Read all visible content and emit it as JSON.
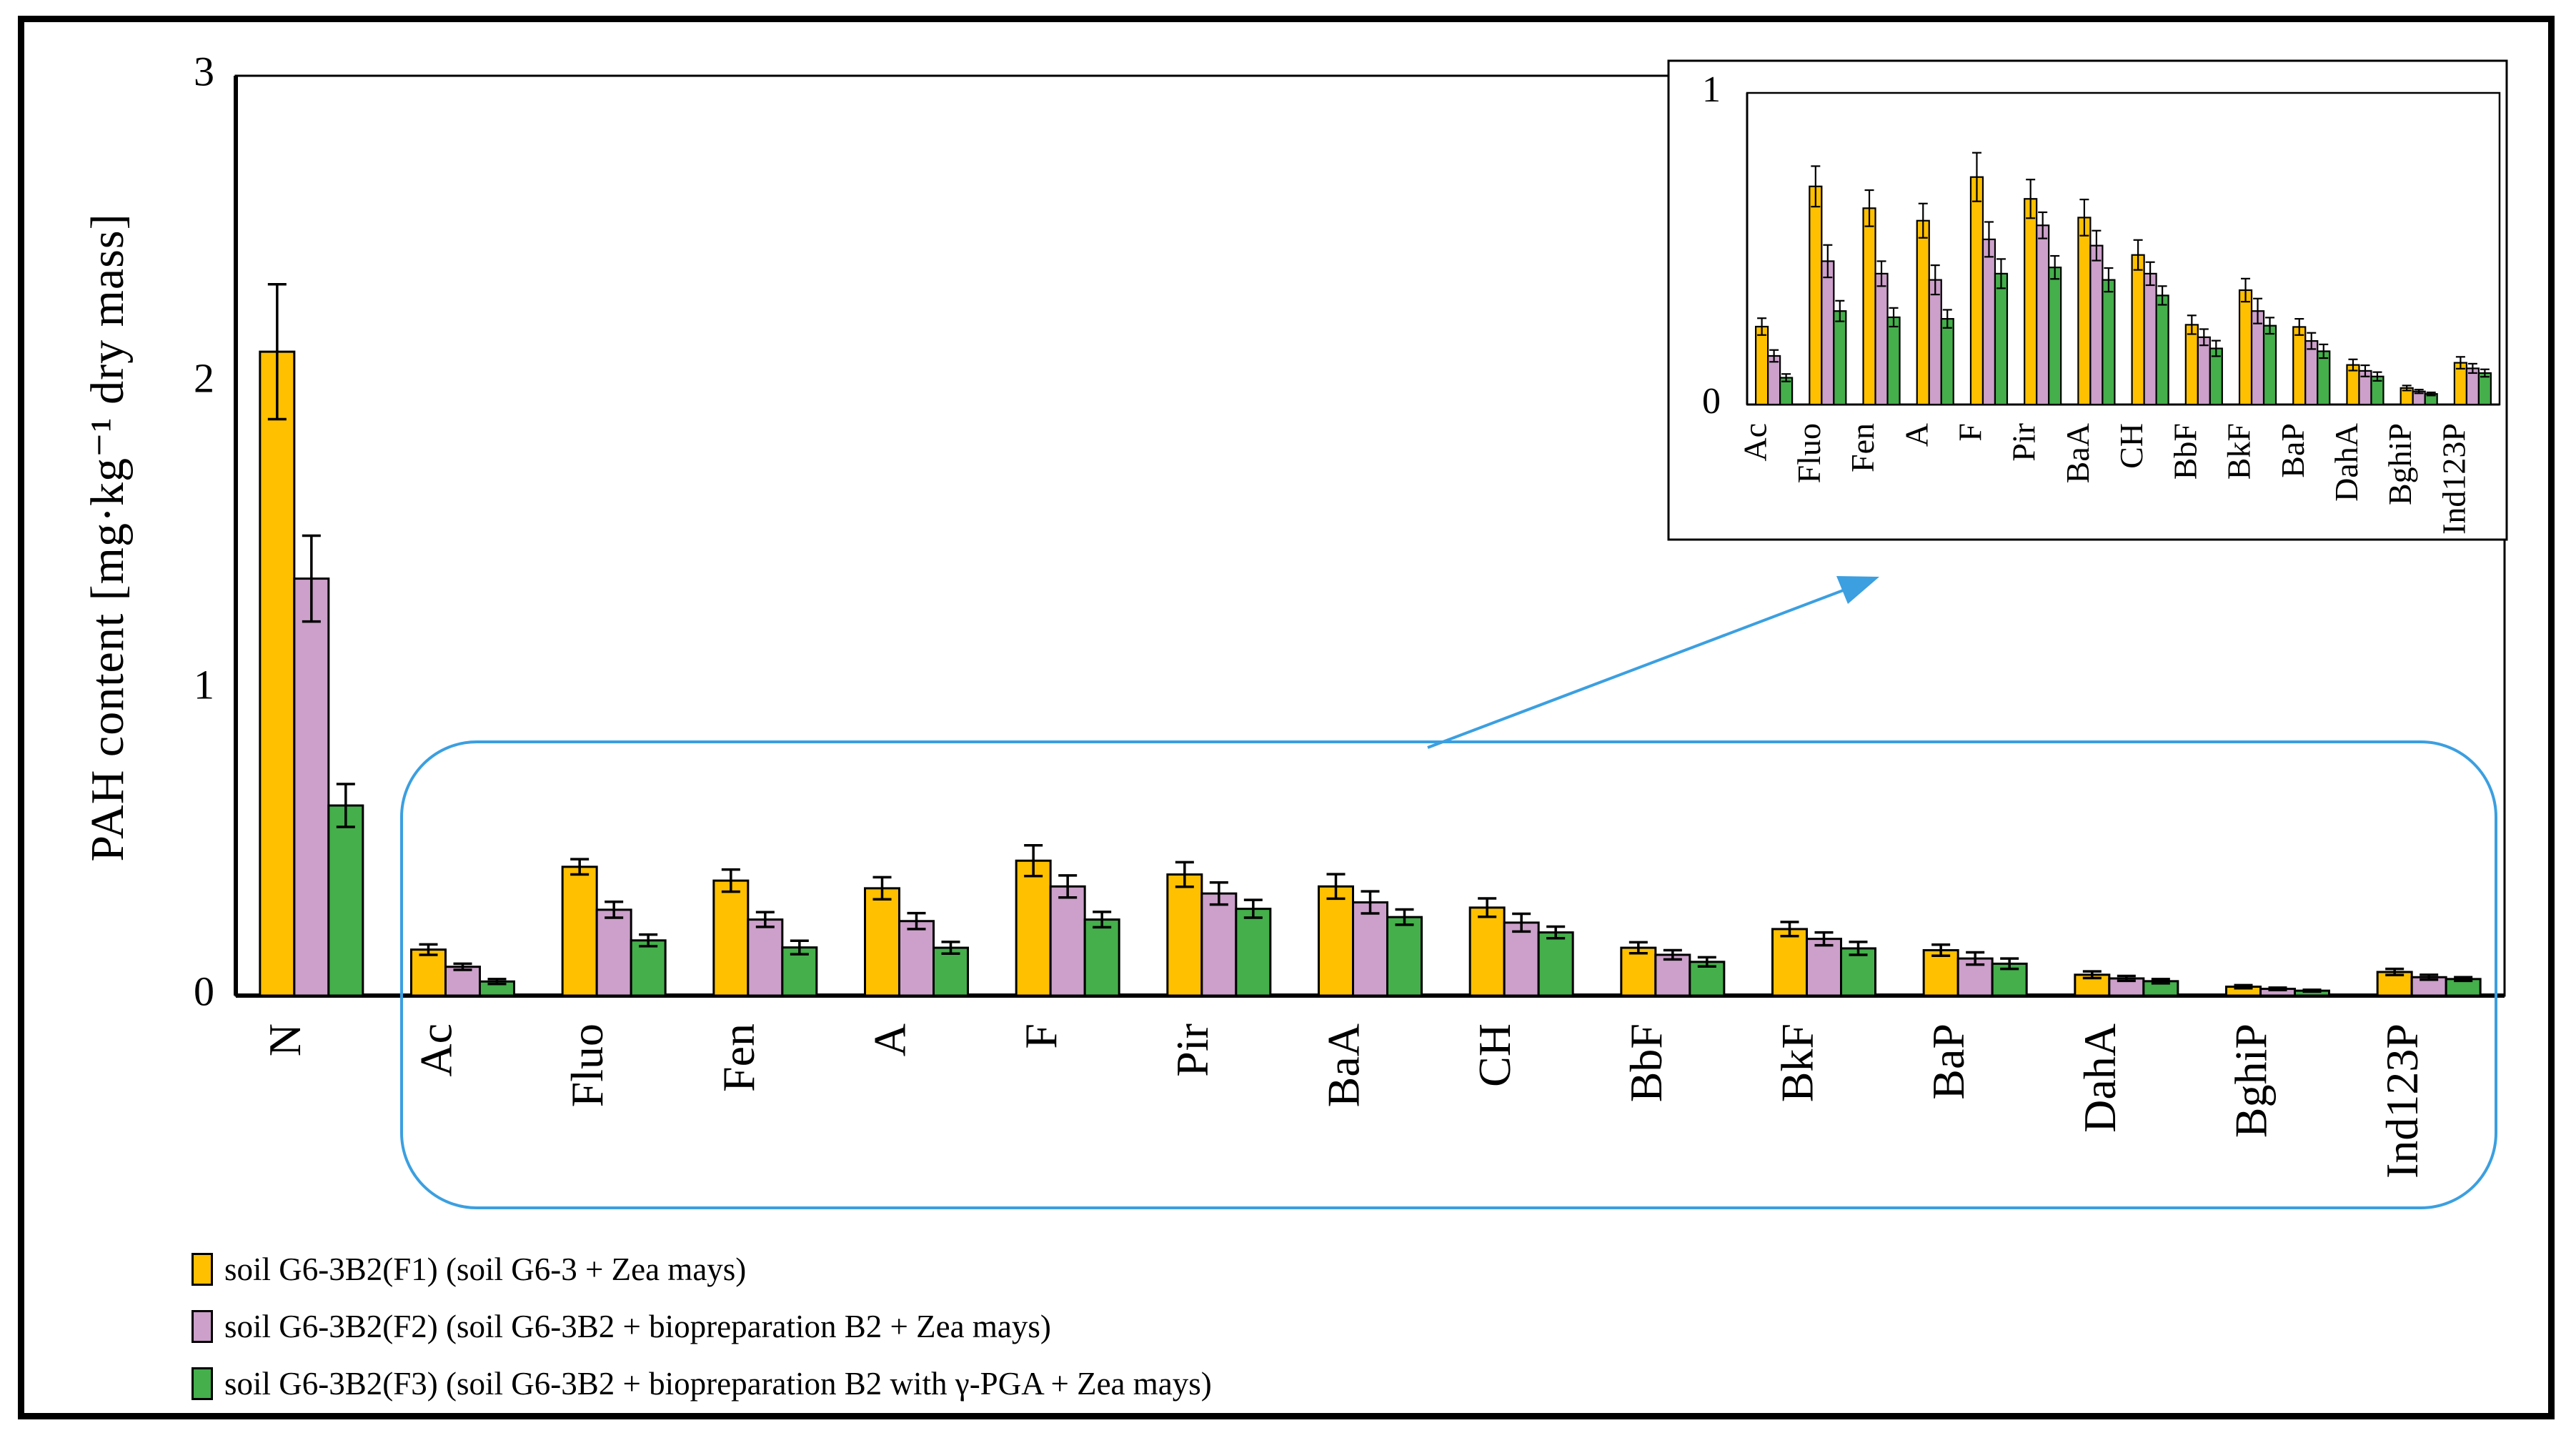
{
  "y_axis_title": "PAH content [mg·kg⁻¹ dry mass]",
  "colors": {
    "series_f1": "#FFC000",
    "series_f2": "#CCA0CA",
    "series_f3": "#44AF4B",
    "annotation_blue": "#3B9FE0",
    "axis": "#000000",
    "background": "#FFFFFF"
  },
  "legend": {
    "position": "bottom-left",
    "entries": [
      {
        "label": "soil G6-3B2(F1) (soil G6-3 + Zea mays)",
        "color": "#FFC000"
      },
      {
        "label": "soil G6-3B2(F2) (soil G6-3B2 + biopreparation B2 + Zea mays)",
        "color": "#CCA0CA"
      },
      {
        "label": "soil G6-3B2(F3) (soil G6-3B2 + biopreparation B2 with γ-PGA + Zea mays)",
        "color": "#44AF4B"
      }
    ]
  },
  "annotations": {
    "highlight_region": {
      "shape": "rounded-rectangle",
      "color": "#3B9FE0",
      "covers": "Ac through Ind123P category groups"
    },
    "zoom_arrow": {
      "shape": "arrow",
      "color": "#3B9FE0",
      "points_to": "inset chart"
    }
  },
  "chart_data": [
    {
      "id": "main",
      "type": "bar",
      "title": "",
      "xlabel": "",
      "ylabel": "PAH content [mg·kg⁻¹ dry mass]",
      "ylim": [
        0,
        3
      ],
      "yticks": [
        0,
        1,
        2,
        3
      ],
      "grid": false,
      "error_bars": true,
      "categories": [
        "N",
        "Ac",
        "Fluo",
        "Fen",
        "A",
        "F",
        "Pir",
        "BaA",
        "CH",
        "BbF",
        "BkF",
        "BaP",
        "DahA",
        "BghiP",
        "Ind123P"
      ],
      "series": [
        {
          "name": "soil G6-3B2(F1) (soil G6-3 + Zea mays)",
          "color": "#FFC000",
          "values": [
            2.1,
            0.15,
            0.42,
            0.375,
            0.35,
            0.44,
            0.395,
            0.356,
            0.287,
            0.156,
            0.217,
            0.148,
            0.068,
            0.029,
            0.077
          ],
          "errors": [
            0.22,
            0.017,
            0.025,
            0.036,
            0.036,
            0.05,
            0.04,
            0.04,
            0.03,
            0.018,
            0.023,
            0.018,
            0.011,
            0.005,
            0.01
          ]
        },
        {
          "name": "soil G6-3B2(F2) (soil G6-3B2 + biopreparation B2 + Zea mays)",
          "color": "#CCA0CA",
          "values": [
            1.36,
            0.094,
            0.28,
            0.248,
            0.243,
            0.356,
            0.333,
            0.304,
            0.238,
            0.133,
            0.185,
            0.121,
            0.056,
            0.022,
            0.06
          ],
          "errors": [
            0.14,
            0.01,
            0.026,
            0.024,
            0.026,
            0.036,
            0.036,
            0.036,
            0.029,
            0.015,
            0.021,
            0.02,
            0.008,
            0.004,
            0.008
          ]
        },
        {
          "name": "soil G6-3B2(F3) (soil G6-3B2 + biopreparation B2 with γ-PGA + Zea mays)",
          "color": "#44AF4B",
          "values": [
            0.62,
            0.046,
            0.18,
            0.157,
            0.156,
            0.248,
            0.283,
            0.256,
            0.206,
            0.11,
            0.154,
            0.104,
            0.047,
            0.016,
            0.054
          ],
          "errors": [
            0.07,
            0.008,
            0.019,
            0.022,
            0.019,
            0.025,
            0.029,
            0.025,
            0.019,
            0.015,
            0.021,
            0.017,
            0.007,
            0.003,
            0.006
          ]
        }
      ]
    },
    {
      "id": "inset-zoom",
      "type": "bar",
      "title": "",
      "xlabel": "",
      "ylabel": "",
      "ylim": [
        0,
        1
      ],
      "yticks": [
        0,
        1
      ],
      "grid": false,
      "error_bars": true,
      "categories": [
        "Ac",
        "Fluo",
        "Fen",
        "A",
        "F",
        "Pir",
        "BaA",
        "CH",
        "BbF",
        "BkF",
        "BaP",
        "DahA",
        "BghiP",
        "Ind123P"
      ],
      "series": [
        {
          "name": "soil G6-3B2(F1) (soil G6-3 + Zea mays)",
          "color": "#FFC000",
          "values": [
            0.25,
            0.7,
            0.63,
            0.59,
            0.73,
            0.66,
            0.6,
            0.48,
            0.256,
            0.367,
            0.249,
            0.127,
            0.053,
            0.134
          ],
          "errors": [
            0.027,
            0.065,
            0.058,
            0.055,
            0.078,
            0.062,
            0.058,
            0.048,
            0.03,
            0.037,
            0.026,
            0.018,
            0.008,
            0.019
          ]
        },
        {
          "name": "soil G6-3B2(F2) (soil G6-3B2 + biopreparation B2 + Zea mays)",
          "color": "#CCA0CA",
          "values": [
            0.156,
            0.46,
            0.42,
            0.4,
            0.53,
            0.575,
            0.51,
            0.42,
            0.216,
            0.3,
            0.204,
            0.108,
            0.042,
            0.116
          ],
          "errors": [
            0.019,
            0.052,
            0.04,
            0.047,
            0.056,
            0.042,
            0.048,
            0.037,
            0.026,
            0.04,
            0.026,
            0.018,
            0.006,
            0.015
          ]
        },
        {
          "name": "soil G6-3B2(F3) (soil G6-3B2 + biopreparation B2 with γ-PGA + Zea mays)",
          "color": "#44AF4B",
          "values": [
            0.086,
            0.3,
            0.28,
            0.275,
            0.42,
            0.44,
            0.4,
            0.35,
            0.18,
            0.253,
            0.171,
            0.09,
            0.034,
            0.101
          ],
          "errors": [
            0.012,
            0.033,
            0.03,
            0.029,
            0.047,
            0.037,
            0.038,
            0.03,
            0.025,
            0.026,
            0.022,
            0.014,
            0.005,
            0.012
          ]
        }
      ]
    }
  ]
}
